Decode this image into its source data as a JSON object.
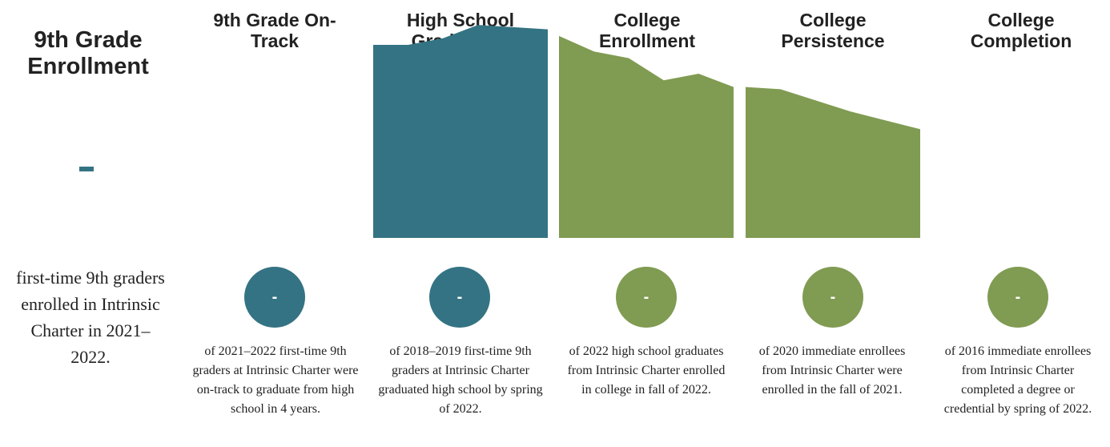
{
  "colors": {
    "teal": "#347383",
    "green": "#809b52",
    "text": "#222222"
  },
  "stages": [
    {
      "title": "9th Grade Enrollment",
      "value": "-",
      "description": "first-time 9th graders enrolled in Intrinsic Charter in 2021–2022."
    },
    {
      "title": "9th Grade On-Track",
      "value": "-",
      "description": "of 2021–2022 first-time 9th graders at Intrinsic Charter were on-track to graduate from high school in 4 years."
    },
    {
      "title": "High School Graduation",
      "value": "-",
      "description": "of 2018–2019 first-time 9th graders at Intrinsic Charter graduated high school by spring of 2022."
    },
    {
      "title": "College Enrollment",
      "value": "-",
      "description": "of 2022 high school graduates from Intrinsic Charter enrolled in college in fall of 2022."
    },
    {
      "title": "College Persistence",
      "value": "-",
      "description": "of 2020 immediate enrollees from Intrinsic Charter were enrolled in the fall of 2021."
    },
    {
      "title": "College Completion",
      "value": "-",
      "description": "of 2016 immediate enrollees from Intrinsic Charter completed a degree or credential by spring of 2022."
    }
  ],
  "chart_data": {
    "type": "area",
    "ylim": [
      0,
      1
    ],
    "series": [
      {
        "stage": "High School Graduation",
        "color": "#347383",
        "values": [
          0.87,
          0.87,
          0.9,
          0.96,
          0.95,
          0.94
        ]
      },
      {
        "stage": "College Enrollment",
        "color": "#809b52",
        "values": [
          0.91,
          0.84,
          0.81,
          0.71,
          0.74,
          0.68
        ]
      },
      {
        "stage": "College Persistence",
        "color": "#809b52",
        "values": [
          0.68,
          0.67,
          0.62,
          0.57,
          0.53,
          0.49
        ]
      }
    ]
  }
}
